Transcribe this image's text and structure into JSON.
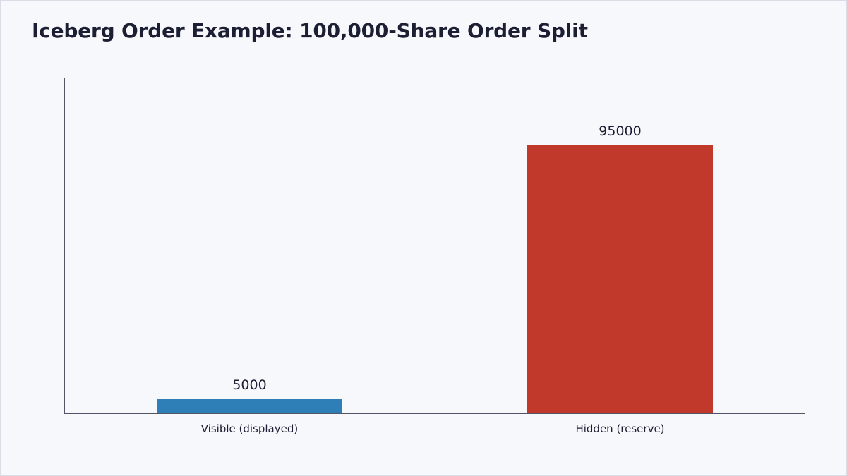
{
  "chart_data": {
    "type": "bar",
    "title": "Iceberg Order Example: 100,000-Share Order Split",
    "xlabel": "",
    "ylabel": "",
    "categories": [
      "Visible (displayed)",
      "Hidden (reserve)"
    ],
    "values": [
      5000,
      95000
    ],
    "colors": [
      "#2e7fb8",
      "#c0392b"
    ],
    "ylim": [
      0,
      105000
    ],
    "grid": false,
    "legend": "none",
    "data_labels": true
  },
  "colors": {
    "background": "#f6f8fc",
    "axis": "#1c1f33",
    "text": "#1c1f33"
  }
}
